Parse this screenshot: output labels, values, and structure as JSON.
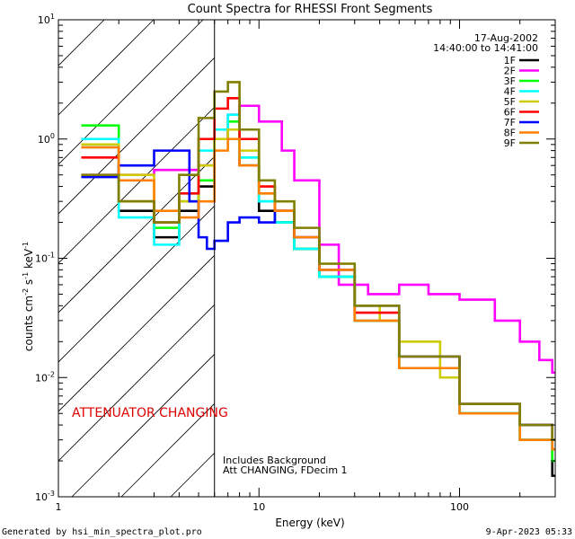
{
  "chart_data": {
    "type": "line",
    "title": "Count Spectra for RHESSI Front Segments",
    "date": "17-Aug-2002",
    "time_range": "14:40:00 to 14:41:00",
    "xlabel": "Energy (keV)",
    "ylabel_parts": {
      "a": "counts cm",
      "b": "-2",
      "c": " s",
      "d": "-1",
      "e": " keV",
      "f": "-1"
    },
    "x_scale": "log",
    "y_scale": "log",
    "xlim": [
      1,
      300
    ],
    "ylim": [
      0.001,
      10
    ],
    "x_ticks": [
      {
        "value": 1,
        "label": "1"
      },
      {
        "value": 10,
        "label": "10"
      },
      {
        "value": 100,
        "label": "100"
      }
    ],
    "y_ticks": [
      {
        "value": 10,
        "base": "10",
        "exp": "1"
      },
      {
        "value": 1,
        "base": "10",
        "exp": "0"
      },
      {
        "value": 0.1,
        "base": "10",
        "exp": "-1"
      },
      {
        "value": 0.01,
        "base": "10",
        "exp": "-2"
      },
      {
        "value": 0.001,
        "base": "10",
        "exp": "-3"
      }
    ],
    "attenuator_shade_max_energy": 6,
    "attenuator_label": "ATTENUATOR CHANGING",
    "note_lines": [
      "Includes Background",
      "Att CHANGING, FDecim 1"
    ],
    "footer_left": "Generated by hsi_min_spectra_plot.pro",
    "footer_right": "9-Apr-2023 05:33",
    "series": [
      {
        "name": "1F",
        "color": "#000000",
        "x": [
          1.3,
          2,
          3,
          4,
          5,
          6,
          7,
          8,
          10,
          12,
          15,
          20,
          30,
          50,
          100,
          200,
          290
        ],
        "y": [
          0.9,
          0.25,
          0.15,
          0.25,
          0.4,
          1.0,
          1.2,
          0.6,
          0.25,
          0.2,
          0.12,
          0.07,
          0.03,
          0.012,
          0.005,
          0.003,
          0.0015
        ]
      },
      {
        "name": "2F",
        "color": "#ff00ff",
        "x": [
          1.3,
          2,
          3,
          4,
          5,
          6,
          7,
          8,
          10,
          13,
          15,
          20,
          25,
          35,
          50,
          70,
          100,
          150,
          200,
          250,
          290
        ],
        "y": [
          0.5,
          0.5,
          0.55,
          0.55,
          0.6,
          1.0,
          1.6,
          1.9,
          1.4,
          0.8,
          0.45,
          0.13,
          0.06,
          0.05,
          0.06,
          0.05,
          0.045,
          0.03,
          0.02,
          0.014,
          0.011
        ]
      },
      {
        "name": "3F",
        "color": "#00ff00",
        "x": [
          1.3,
          2,
          3,
          4,
          5,
          6,
          7,
          8,
          10,
          12,
          15,
          20,
          30,
          50,
          100,
          200,
          290
        ],
        "y": [
          1.3,
          0.3,
          0.18,
          0.3,
          0.45,
          1.2,
          1.4,
          0.7,
          0.3,
          0.2,
          0.12,
          0.07,
          0.03,
          0.012,
          0.005,
          0.003,
          0.002
        ]
      },
      {
        "name": "4F",
        "color": "#00ffff",
        "x": [
          1.3,
          2,
          3,
          4,
          5,
          6,
          7,
          8,
          10,
          12,
          15,
          20,
          30,
          50,
          100,
          200,
          290
        ],
        "y": [
          1.0,
          0.22,
          0.13,
          0.35,
          0.8,
          1.2,
          1.6,
          0.7,
          0.3,
          0.2,
          0.12,
          0.07,
          0.03,
          0.012,
          0.005,
          0.003,
          0.0025
        ]
      },
      {
        "name": "5F",
        "color": "#cccc00",
        "x": [
          1.3,
          2,
          3,
          4,
          5,
          6,
          7,
          8,
          10,
          12,
          15,
          20,
          30,
          40,
          50,
          80,
          100,
          200,
          290
        ],
        "y": [
          0.9,
          0.5,
          0.2,
          0.3,
          0.6,
          1.0,
          1.2,
          0.8,
          0.35,
          0.25,
          0.15,
          0.08,
          0.04,
          0.03,
          0.02,
          0.01,
          0.006,
          0.004,
          0.003
        ]
      },
      {
        "name": "6F",
        "color": "#ff0000",
        "x": [
          1.3,
          2,
          3,
          4,
          5,
          6,
          7,
          8,
          10,
          12,
          15,
          20,
          30,
          50,
          100,
          200,
          290
        ],
        "y": [
          0.7,
          0.3,
          0.2,
          0.35,
          1.0,
          1.8,
          2.2,
          1.0,
          0.4,
          0.25,
          0.15,
          0.08,
          0.035,
          0.015,
          0.006,
          0.004,
          0.003
        ]
      },
      {
        "name": "7F",
        "color": "#0000ff",
        "x": [
          1.3,
          2,
          3,
          4,
          4.5,
          5,
          5.5,
          6,
          7,
          8,
          10,
          12,
          15,
          20,
          30,
          50,
          100,
          200,
          290
        ],
        "y": [
          0.48,
          0.6,
          0.8,
          0.8,
          0.3,
          0.15,
          0.12,
          0.14,
          0.2,
          0.22,
          0.2,
          0.25,
          0.15,
          0.08,
          0.04,
          0.015,
          0.006,
          0.004,
          0.003
        ]
      },
      {
        "name": "8F",
        "color": "#ff8000",
        "x": [
          1.3,
          2,
          3,
          4,
          5,
          6,
          7,
          8,
          10,
          12,
          15,
          20,
          30,
          50,
          100,
          200,
          290
        ],
        "y": [
          0.85,
          0.45,
          0.25,
          0.22,
          0.3,
          0.8,
          1.0,
          0.6,
          0.35,
          0.25,
          0.15,
          0.08,
          0.03,
          0.012,
          0.005,
          0.003,
          0.0025
        ]
      },
      {
        "name": "9F",
        "color": "#808000",
        "x": [
          1.3,
          2,
          3,
          4,
          5,
          6,
          7,
          8,
          10,
          12,
          15,
          20,
          30,
          50,
          100,
          200,
          290
        ],
        "y": [
          0.5,
          0.3,
          0.2,
          0.5,
          1.5,
          2.5,
          3.0,
          1.2,
          0.45,
          0.3,
          0.18,
          0.09,
          0.04,
          0.015,
          0.006,
          0.004,
          0.003
        ]
      }
    ]
  }
}
